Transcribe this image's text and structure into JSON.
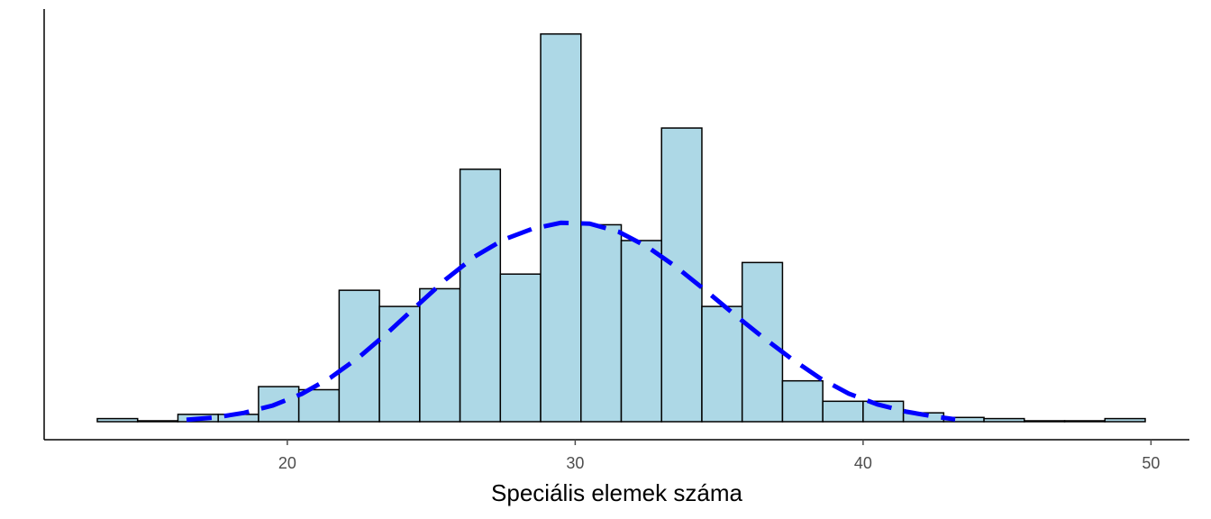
{
  "chart_data": {
    "type": "bar",
    "subtype": "histogram",
    "title": "",
    "xlabel": "Speciális elemek száma",
    "ylabel": "",
    "xlim": [
      12.2,
      51.6
    ],
    "ylim": [
      0,
      0.101
    ],
    "bin_width": 1.4,
    "bins": [
      {
        "start": 13.4,
        "end": 14.8,
        "value": 0.0008
      },
      {
        "start": 14.8,
        "end": 16.2,
        "value": 0.0
      },
      {
        "start": 16.2,
        "end": 17.6,
        "value": 0.0019
      },
      {
        "start": 17.6,
        "end": 19.0,
        "value": 0.0019
      },
      {
        "start": 19.0,
        "end": 20.4,
        "value": 0.0091
      },
      {
        "start": 20.4,
        "end": 21.8,
        "value": 0.0083
      },
      {
        "start": 21.8,
        "end": 23.2,
        "value": 0.0341
      },
      {
        "start": 23.2,
        "end": 24.6,
        "value": 0.0299
      },
      {
        "start": 24.6,
        "end": 26.0,
        "value": 0.0345
      },
      {
        "start": 26.0,
        "end": 27.4,
        "value": 0.0655
      },
      {
        "start": 27.4,
        "end": 28.8,
        "value": 0.0383
      },
      {
        "start": 28.8,
        "end": 30.2,
        "value": 0.1006
      },
      {
        "start": 30.2,
        "end": 31.6,
        "value": 0.0511
      },
      {
        "start": 31.6,
        "end": 33.0,
        "value": 0.047
      },
      {
        "start": 33.0,
        "end": 34.4,
        "value": 0.0762
      },
      {
        "start": 34.4,
        "end": 35.8,
        "value": 0.0299
      },
      {
        "start": 35.8,
        "end": 37.2,
        "value": 0.0413
      },
      {
        "start": 37.2,
        "end": 38.6,
        "value": 0.0106
      },
      {
        "start": 38.6,
        "end": 40.0,
        "value": 0.0053
      },
      {
        "start": 40.0,
        "end": 41.4,
        "value": 0.0053
      },
      {
        "start": 41.4,
        "end": 42.8,
        "value": 0.0023
      },
      {
        "start": 42.8,
        "end": 44.2,
        "value": 0.0011
      },
      {
        "start": 44.2,
        "end": 45.6,
        "value": 0.0008
      },
      {
        "start": 45.6,
        "end": 47.0,
        "value": 0.0
      },
      {
        "start": 47.0,
        "end": 48.4,
        "value": 0.0
      },
      {
        "start": 48.4,
        "end": 49.8,
        "value": 0.0008
      }
    ],
    "density_curve": {
      "x": [
        16.5,
        17.5,
        18.5,
        19.5,
        20.5,
        21.5,
        22.5,
        23.5,
        24.5,
        25.5,
        26.5,
        27.5,
        28.5,
        29.5,
        30.5,
        31.5,
        32.5,
        33.5,
        34.5,
        35.5,
        36.5,
        37.5,
        38.5,
        39.5,
        40.5,
        41.5,
        42.5,
        43.2
      ],
      "y": [
        0.0005,
        0.0011,
        0.0023,
        0.0042,
        0.0072,
        0.0114,
        0.0168,
        0.0232,
        0.0301,
        0.0369,
        0.0428,
        0.0472,
        0.05,
        0.0516,
        0.0514,
        0.0493,
        0.0454,
        0.0402,
        0.0342,
        0.028,
        0.022,
        0.0164,
        0.0113,
        0.0073,
        0.0045,
        0.0026,
        0.0013,
        0.0006
      ],
      "style": "dashed"
    },
    "x_ticks": [
      20,
      30,
      40,
      50
    ],
    "x_tick_labels": [
      "20",
      "30",
      "40",
      "50"
    ],
    "grid": false,
    "legend": "none",
    "colors": {
      "bar_fill": "#add8e6",
      "bar_outline": "#000000",
      "curve": "#0000ff",
      "axis": "#000000",
      "tick_text": "#4d4d4d"
    }
  }
}
